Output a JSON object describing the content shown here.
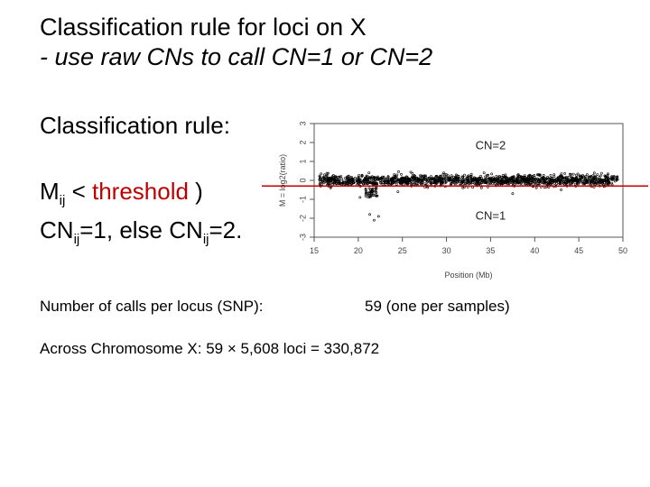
{
  "slide": {
    "title_line1": "Classification rule for loci on X",
    "title_line2": "- use raw CNs to call CN=1 or CN=2",
    "rule_heading": "Classification rule:",
    "rule": {
      "m_symbol": "M",
      "m_subscript": "ij",
      "less_than": " < ",
      "threshold_word": "threshold",
      "close_paren": " )",
      "cn_a": "CN",
      "cn_a_subscript": "ij",
      "cn_a_value": "=1, else ",
      "cn_b": "CN",
      "cn_b_subscript": "ij",
      "cn_b_value": "=2."
    },
    "calls_label": "Number of calls per locus (SNP):",
    "calls_value": "59 (one per samples)",
    "across_text": "Across Chromosome X: 59 × 5,608 loci = 330,872"
  },
  "chart_data": {
    "type": "scatter",
    "xlabel": "Position (Mb)",
    "ylabel": "M = log2(ratio)",
    "xlim": [
      15,
      50
    ],
    "ylim": [
      -3,
      3
    ],
    "x_ticks": [
      "15",
      "20",
      "25",
      "30",
      "35",
      "40",
      "45",
      "50"
    ],
    "y_ticks": [
      "-3",
      "-2",
      "-1",
      "0",
      "1",
      "2",
      "3"
    ],
    "annotations": [
      {
        "text": "CN=2",
        "x": 35,
        "y": 1.8
      },
      {
        "text": "CN=1",
        "x": 35,
        "y": -1.9
      }
    ],
    "threshold_line_y": -0.3,
    "threshold_line_color": "#c00000",
    "point_color": "#000000",
    "point_density": "dense band near y=0 from x≈15.5 to x≈49.5; sparse outliers near y≈-2 around x≈21–22"
  }
}
